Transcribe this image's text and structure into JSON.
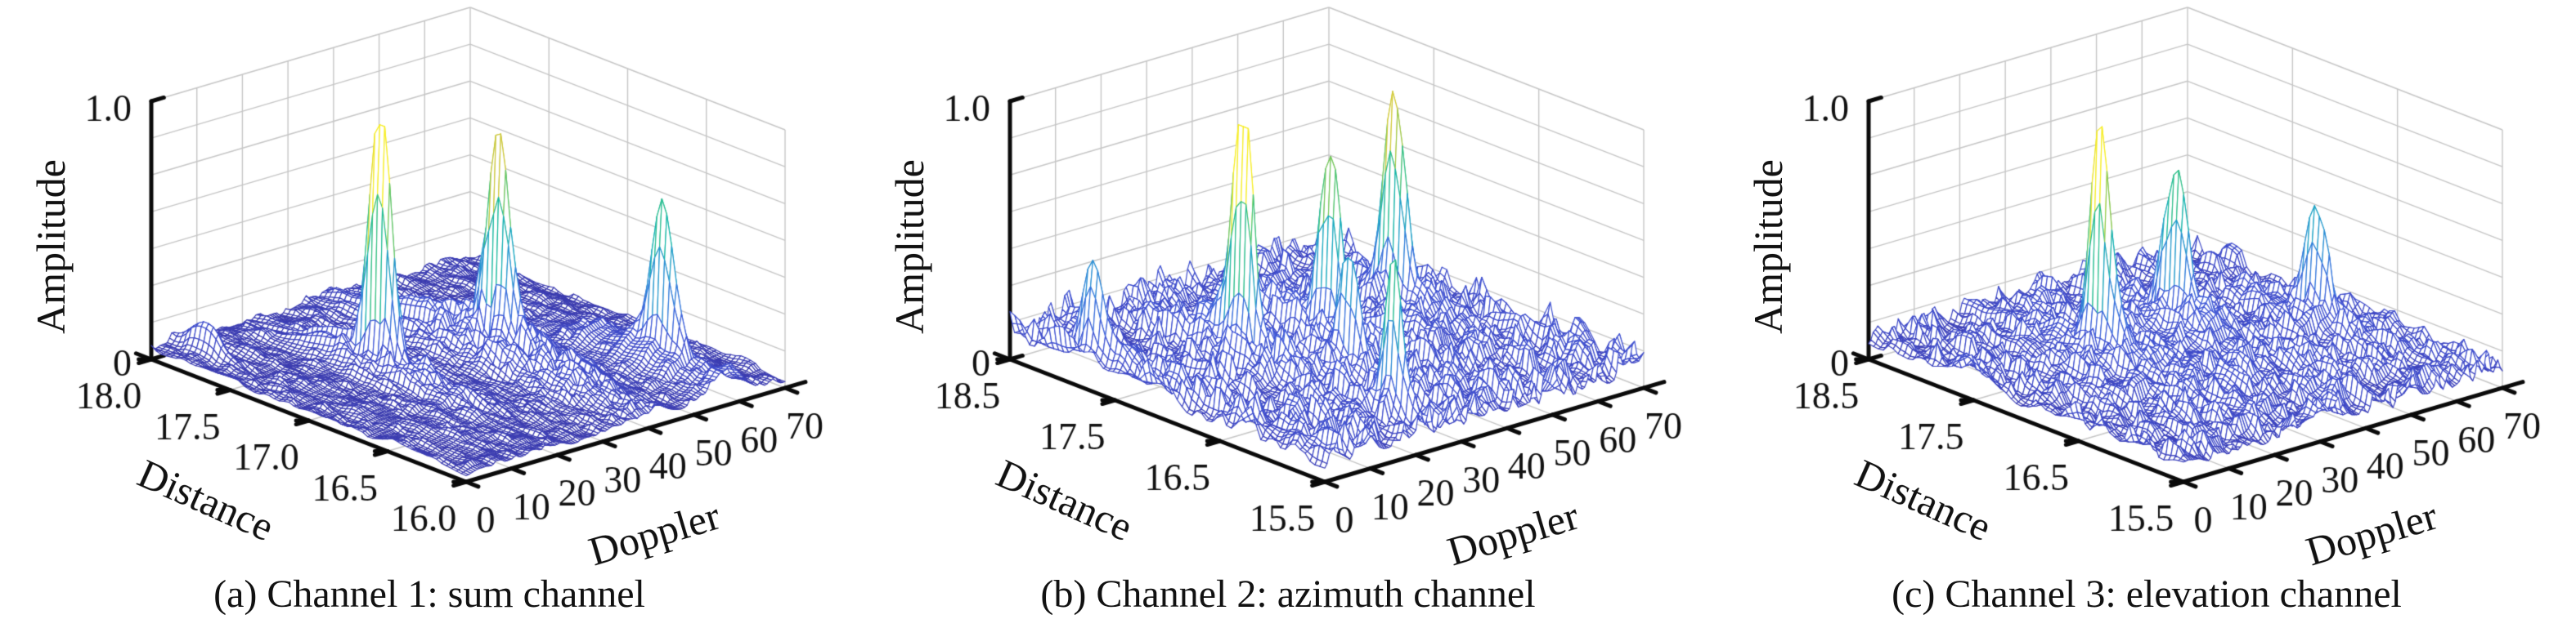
{
  "style": {
    "background": "#ffffff",
    "axis_color": "#0a0a0a",
    "grid_color": "#c6c6c6",
    "text_color": "#111111",
    "mesh_face": "#ffffff",
    "colormap": [
      [
        0.0,
        "#3a35a4"
      ],
      [
        0.12,
        "#3e49c8"
      ],
      [
        0.25,
        "#4159d8"
      ],
      [
        0.38,
        "#3775de"
      ],
      [
        0.5,
        "#2893d2"
      ],
      [
        0.58,
        "#19aac0"
      ],
      [
        0.66,
        "#13b9a5"
      ],
      [
        0.75,
        "#43c47c"
      ],
      [
        0.84,
        "#8ec94f"
      ],
      [
        0.92,
        "#cfc83a"
      ],
      [
        1.0,
        "#f7ee27"
      ]
    ]
  },
  "chart_data": [
    {
      "panel": "a",
      "type": "surface",
      "caption": "(a) Channel 1: sum channel",
      "xlabel": "Doppler",
      "ylabel": "Distance",
      "zlabel": "Amplitude",
      "x_range": [
        0,
        70
      ],
      "y_range": [
        16.0,
        18.0
      ],
      "z_range": [
        0,
        1
      ],
      "x_tick_labels": [
        "0",
        "10",
        "20",
        "30",
        "40",
        "50",
        "60",
        "70"
      ],
      "y_tick_labels": [
        "16.0",
        "16.5",
        "17.0",
        "17.5",
        "18.0"
      ],
      "z_tick_labels": [
        "0",
        "1.0"
      ],
      "peaks": [
        {
          "doppler": 21,
          "distance": 17.15,
          "amplitude": 0.95,
          "sigma_doppler": 0.5,
          "sigma_distance": 0.032,
          "skirt": 0.2,
          "skirt_rd": 2.8,
          "skirt_rr": 0.2
        },
        {
          "doppler": 40,
          "distance": 16.95,
          "amplitude": 0.72,
          "sigma_doppler": 0.55,
          "sigma_distance": 0.035,
          "skirt": 0.3,
          "skirt_rd": 5.0,
          "skirt_rr": 0.3
        },
        {
          "doppler": 57,
          "distance": 16.4,
          "amplitude": 0.54,
          "sigma_doppler": 0.55,
          "sigma_distance": 0.035,
          "skirt": 0.3,
          "skirt_rd": 4.0,
          "skirt_rr": 0.26
        },
        {
          "doppler": 5,
          "distance": 17.8,
          "amplitude": 0.1,
          "sigma_doppler": 0.8,
          "sigma_distance": 0.05,
          "skirt": 0.3,
          "skirt_rd": 2.0,
          "skirt_rr": 0.1
        }
      ],
      "noise": {
        "base": 0.012,
        "smooth": 0.03,
        "spike": 0.028,
        "bulge": 0
      },
      "seed": 101
    },
    {
      "panel": "b",
      "type": "surface",
      "caption": "(b) Channel 2: azimuth channel",
      "xlabel": "Doppler",
      "ylabel": "Distance",
      "zlabel": "Amplitude",
      "x_range": [
        0,
        70
      ],
      "y_range": [
        15.5,
        18.5
      ],
      "z_range": [
        0,
        1
      ],
      "x_tick_labels": [
        "0",
        "10",
        "20",
        "30",
        "40",
        "50",
        "60",
        "70"
      ],
      "y_tick_labels": [
        "15.5",
        "16.5",
        "17.5",
        "18.5"
      ],
      "z_tick_labels": [
        "0",
        "1.0"
      ],
      "peaks": [
        {
          "doppler": 2,
          "distance": 17.8,
          "amplitude": 0.33,
          "sigma_doppler": 0.5,
          "sigma_distance": 0.03,
          "skirt": 0.2,
          "skirt_rd": 2.0,
          "skirt_rr": 0.15
        },
        {
          "doppler": 21,
          "distance": 17.2,
          "amplitude": 0.88,
          "sigma_doppler": 0.5,
          "sigma_distance": 0.032,
          "skirt": 0.22,
          "skirt_rd": 3.0,
          "skirt_rr": 0.2
        },
        {
          "doppler": 22,
          "distance": 15.8,
          "amplitude": 0.5,
          "sigma_doppler": 0.45,
          "sigma_distance": 0.028,
          "skirt": 0.15,
          "skirt_rd": 2.0,
          "skirt_rr": 0.12
        },
        {
          "doppler": 38,
          "distance": 17.1,
          "amplitude": 0.62,
          "sigma_doppler": 0.55,
          "sigma_distance": 0.035,
          "skirt": 0.25,
          "skirt_rd": 3.5,
          "skirt_rr": 0.22
        },
        {
          "doppler": 31,
          "distance": 16.6,
          "amplitude": 0.4,
          "sigma_doppler": 0.5,
          "sigma_distance": 0.03,
          "skirt": 0.2,
          "skirt_rd": 2.5,
          "skirt_rr": 0.15
        },
        {
          "doppler": 57,
          "distance": 17.3,
          "amplitude": 0.64,
          "sigma_doppler": 0.55,
          "sigma_distance": 0.035,
          "skirt": 0.25,
          "skirt_rd": 3.5,
          "skirt_rr": 0.22
        }
      ],
      "noise": {
        "base": 0.02,
        "smooth": 0.075,
        "spike": 0.13,
        "bulge": 0
      },
      "seed": 202
    },
    {
      "panel": "c",
      "type": "surface",
      "caption": "(c) Channel 3: elevation channel",
      "xlabel": "Doppler",
      "ylabel": "Distance",
      "zlabel": "Amplitude",
      "x_range": [
        0,
        70
      ],
      "y_range": [
        15.5,
        18.5
      ],
      "z_range": [
        0,
        1
      ],
      "x_tick_labels": [
        "0",
        "10",
        "20",
        "30",
        "40",
        "50",
        "60",
        "70"
      ],
      "y_tick_labels": [
        "15.5",
        "16.5",
        "17.5",
        "18.5"
      ],
      "z_tick_labels": [
        "0",
        "1.0"
      ],
      "peaks": [
        {
          "doppler": 21,
          "distance": 17.2,
          "amplitude": 0.82,
          "sigma_doppler": 0.5,
          "sigma_distance": 0.032,
          "skirt": 0.2,
          "skirt_rd": 3.0,
          "skirt_rr": 0.2
        },
        {
          "doppler": 40,
          "distance": 17.3,
          "amplitude": 0.55,
          "sigma_doppler": 0.55,
          "sigma_distance": 0.035,
          "skirt": 0.22,
          "skirt_rd": 3.2,
          "skirt_rr": 0.2
        },
        {
          "doppler": 59,
          "distance": 16.8,
          "amplitude": 0.42,
          "sigma_doppler": 0.5,
          "sigma_distance": 0.032,
          "skirt": 0.2,
          "skirt_rd": 3.0,
          "skirt_rr": 0.18
        }
      ],
      "noise": {
        "base": 0.02,
        "smooth": 0.06,
        "spike": 0.1,
        "bulge": 0.05
      },
      "seed": 303
    }
  ]
}
